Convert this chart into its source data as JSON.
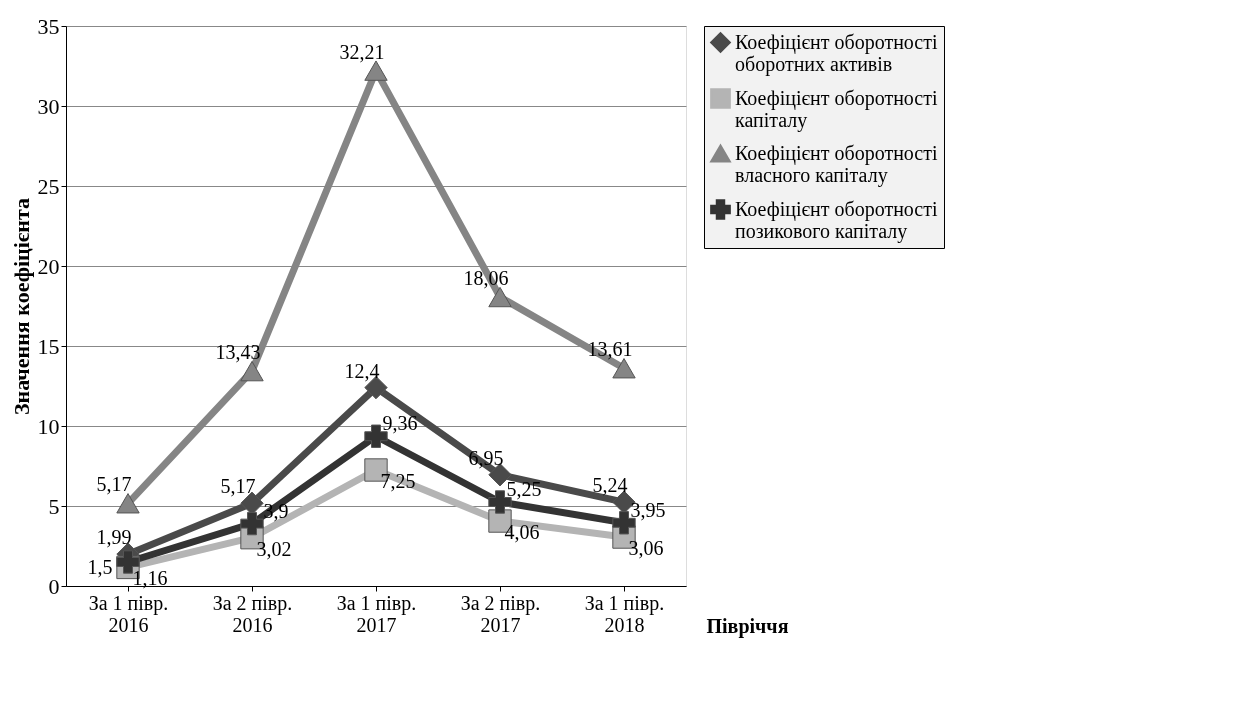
{
  "chart_data": {
    "type": "line",
    "xlabel": "Півріччя",
    "ylabel": "Значення коефіцієнта",
    "categories": [
      "За 1 півр.\n2016",
      "За 2 півр.\n2016",
      "За 1 півр.\n2017",
      "За 2 півр.\n2017",
      "За 1 півр.\n2018"
    ],
    "series": [
      {
        "name": "Коефіцієнт оборотності\nоборотних активів",
        "color": "#4a4a4a",
        "marker": "diamond",
        "values": [
          1.99,
          5.17,
          12.4,
          6.95,
          5.24
        ],
        "value_labels": [
          "1,99",
          "5,17",
          "12,4",
          "6,95",
          "5,24"
        ]
      },
      {
        "name": "Коефіцієнт оборотності\nкапіталу",
        "color": "#b4b4b4",
        "marker": "square",
        "values": [
          1.16,
          3.02,
          7.25,
          4.06,
          3.06
        ],
        "value_labels": [
          "1,16",
          "3,02",
          "7,25",
          "4,06",
          "3,06"
        ]
      },
      {
        "name": "Коефіцієнт оборотності\nвласного капіталу",
        "color": "#858585",
        "marker": "triangle",
        "values": [
          5.17,
          13.43,
          32.21,
          18.06,
          13.61
        ],
        "value_labels": [
          "5,17",
          "13,43",
          "32,21",
          "18,06",
          "13,61"
        ]
      },
      {
        "name": "Коефіцієнт оборотності\nпозикового капіталу",
        "color": "#333333",
        "marker": "cross",
        "values": [
          1.5,
          3.9,
          9.36,
          5.25,
          3.95
        ],
        "value_labels": [
          "1,5",
          "3,9",
          "9,36",
          "5,25",
          "3,95"
        ]
      }
    ],
    "ylim": [
      0,
      35
    ],
    "yticks": [
      0,
      5,
      10,
      15,
      20,
      25,
      30,
      35
    ],
    "grid": "y",
    "legend": "right",
    "line_style": "solid"
  }
}
